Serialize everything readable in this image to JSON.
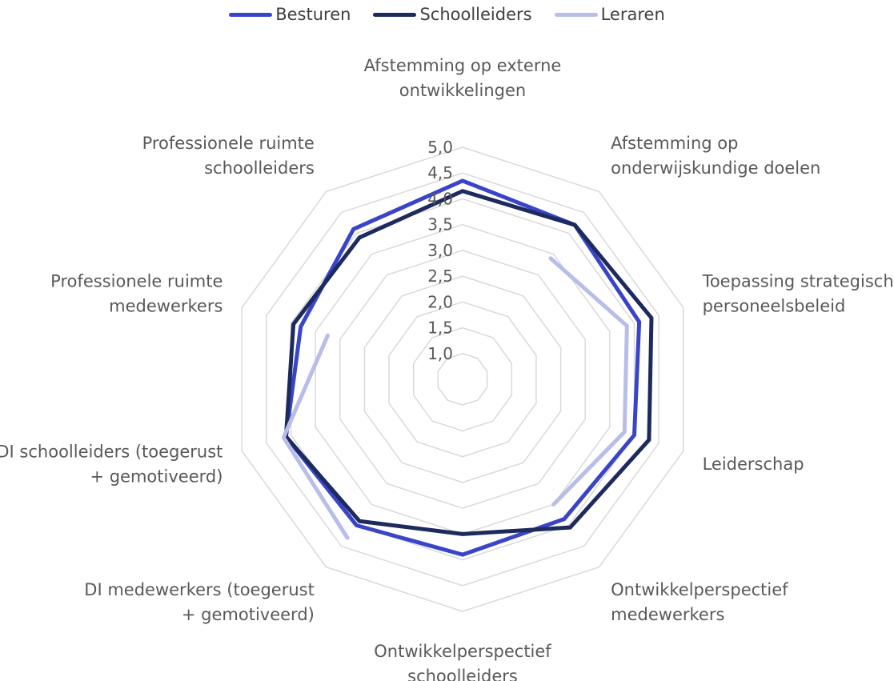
{
  "chart_data": {
    "type": "radar",
    "title": "",
    "categories": [
      [
        "Afstemming op externe",
        "ontwikkelingen"
      ],
      [
        "Afstemming op",
        "onderwijskundige doelen"
      ],
      [
        "Toepassing strategisch",
        "personeelsbeleid"
      ],
      [
        "Leiderschap"
      ],
      [
        "Ontwikkelperspectief",
        "medewerkers"
      ],
      [
        "Ontwikkelperspectief",
        "schoolleiders"
      ],
      [
        "DI medewerkers (toegerust",
        "+ gemotiveerd)"
      ],
      [
        "DI schoolleiders (toegerust",
        "+ gemotiveerd)"
      ],
      [
        "Professionele ruimte",
        "medewerkers"
      ],
      [
        "Professionele ruimte",
        "schoolleiders"
      ]
    ],
    "ticks": [
      "1,0",
      "1,5",
      "2,0",
      "2,5",
      "3,0",
      "3,5",
      "4,0",
      "4,5",
      "5,0"
    ],
    "rlim": [
      0.5,
      5.0
    ],
    "grid": true,
    "legend_position": "top",
    "series": [
      {
        "name": "Besturen",
        "color": "#3a44c8",
        "values": [
          4.35,
          4.2,
          4.1,
          4.0,
          3.85,
          3.9,
          4.0,
          4.1,
          3.8,
          4.1
        ]
      },
      {
        "name": "Schoolleiders",
        "color": "#1c2a5e",
        "values": [
          4.15,
          4.2,
          4.35,
          4.3,
          4.05,
          3.5,
          3.9,
          4.1,
          3.95,
          3.9
        ]
      },
      {
        "name": "Leraren",
        "color": "#b8bdea",
        "values": [
          null,
          3.4,
          3.85,
          3.8,
          3.5,
          null,
          4.3,
          4.15,
          3.25,
          null
        ]
      }
    ]
  }
}
